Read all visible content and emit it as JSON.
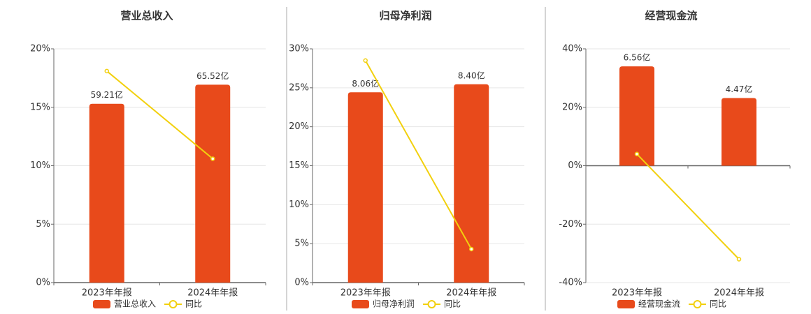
{
  "chart_data": [
    {
      "type": "combo",
      "title": "营业总收入",
      "categories": [
        "2023年年报",
        "2024年年报"
      ],
      "series": [
        {
          "name": "营业总收入",
          "color": "#e84a1b",
          "values": [
            59.21,
            65.52
          ],
          "value_labels": [
            "59.21亿",
            "65.52亿"
          ],
          "axis": "y2"
        },
        {
          "name": "同比",
          "color": "#f2d00e",
          "values": [
            18.1,
            10.6
          ]
        }
      ],
      "ylim": [
        0,
        20
      ],
      "yticks": [
        {
          "value": 0,
          "label": "0%"
        },
        {
          "value": 5,
          "label": "5%"
        },
        {
          "value": 10,
          "label": "10%"
        },
        {
          "value": 15,
          "label": "15%"
        },
        {
          "value": 20,
          "label": "20%"
        }
      ],
      "y2lim": [
        0,
        77.4
      ],
      "grid": true
    },
    {
      "type": "combo",
      "title": "归母净利润",
      "categories": [
        "2023年年报",
        "2024年年报"
      ],
      "series": [
        {
          "name": "归母净利润",
          "color": "#e84a1b",
          "values": [
            8.06,
            8.4
          ],
          "value_labels": [
            "8.06亿",
            "8.40亿"
          ],
          "axis": "y2"
        },
        {
          "name": "同比",
          "color": "#f2d00e",
          "values": [
            28.5,
            4.3
          ]
        }
      ],
      "ylim": [
        0,
        30
      ],
      "yticks": [
        {
          "value": 0,
          "label": "0%"
        },
        {
          "value": 5,
          "label": "5%"
        },
        {
          "value": 10,
          "label": "10%"
        },
        {
          "value": 15,
          "label": "15%"
        },
        {
          "value": 20,
          "label": "20%"
        },
        {
          "value": 25,
          "label": "25%"
        },
        {
          "value": 30,
          "label": "30%"
        }
      ],
      "y2lim": [
        0,
        9.9
      ],
      "grid": true
    },
    {
      "type": "combo",
      "title": "经营现金流",
      "categories": [
        "2023年年报",
        "2024年年报"
      ],
      "series": [
        {
          "name": "经营现金流",
          "color": "#e84a1b",
          "values": [
            6.56,
            4.47
          ],
          "value_labels": [
            "6.56亿",
            "4.47亿"
          ],
          "axis": "y2"
        },
        {
          "name": "同比",
          "color": "#f2d00e",
          "values": [
            4,
            -32
          ]
        }
      ],
      "ylim": [
        -40,
        40
      ],
      "yticks": [
        {
          "value": -40,
          "label": "-40%"
        },
        {
          "value": -20,
          "label": "-20%"
        },
        {
          "value": 0,
          "label": "0%"
        },
        {
          "value": 20,
          "label": "20%"
        },
        {
          "value": 40,
          "label": "40%"
        }
      ],
      "y2lim": [
        -7.72,
        7.72
      ],
      "grid": true
    }
  ]
}
